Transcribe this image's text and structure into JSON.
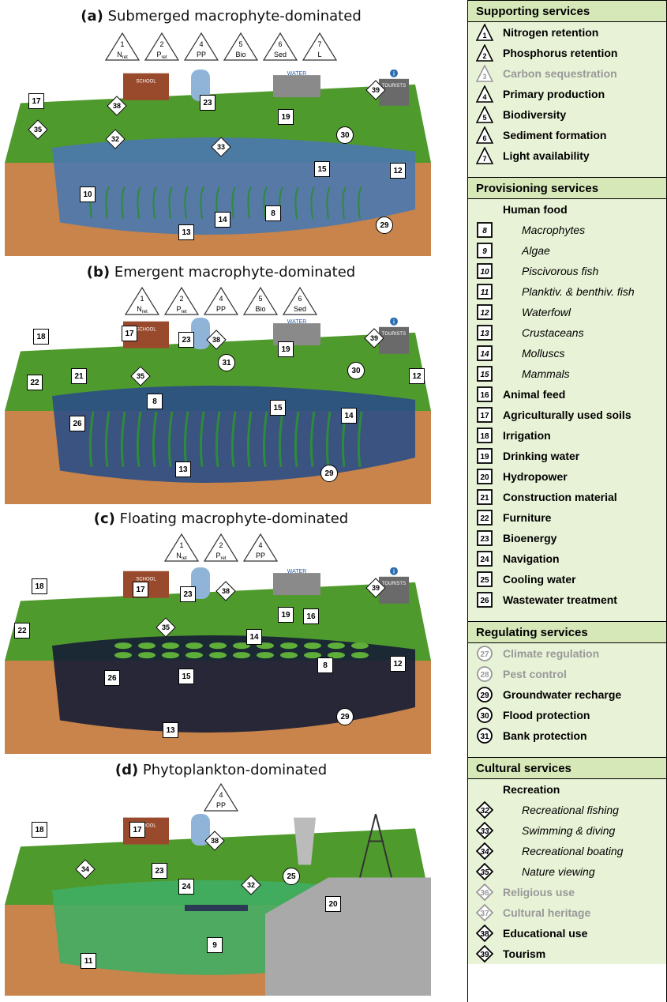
{
  "panels": [
    {
      "letter": "(a)",
      "title": "Submerged macrophyte-dominated",
      "triangles": [
        {
          "n": "1",
          "t": "N",
          "sub": "ret"
        },
        {
          "n": "2",
          "t": "P",
          "sub": "ret"
        },
        {
          "n": "4",
          "t": "PP",
          "sub": ""
        },
        {
          "n": "5",
          "t": "Bio",
          "sub": ""
        },
        {
          "n": "6",
          "t": "Sed",
          "sub": ""
        },
        {
          "n": "7",
          "t": "L",
          "sub": ""
        }
      ]
    },
    {
      "letter": "(b)",
      "title": "Emergent macrophyte-dominated",
      "triangles": [
        {
          "n": "1",
          "t": "N",
          "sub": "ret"
        },
        {
          "n": "2",
          "t": "P",
          "sub": "ret"
        },
        {
          "n": "4",
          "t": "PP",
          "sub": ""
        },
        {
          "n": "5",
          "t": "Bio",
          "sub": ""
        },
        {
          "n": "6",
          "t": "Sed",
          "sub": ""
        }
      ]
    },
    {
      "letter": "(c)",
      "title": "Floating macrophyte-dominated",
      "triangles": [
        {
          "n": "1",
          "t": "N",
          "sub": "ret"
        },
        {
          "n": "2",
          "t": "P",
          "sub": "ret"
        },
        {
          "n": "4",
          "t": "PP",
          "sub": ""
        }
      ]
    },
    {
      "letter": "(d)",
      "title": "Phytoplankton-dominated",
      "triangles": [
        {
          "n": "4",
          "t": "PP",
          "sub": ""
        }
      ]
    }
  ],
  "scene_labels": {
    "school": "SCHOOL",
    "drinking_water_line1": "DRINKING",
    "drinking_water_line2": "WATER",
    "tourists": "TOURISTS",
    "info": "i"
  },
  "scene_markers": {
    "a": {
      "squares": [
        "17",
        "23",
        "19",
        "10",
        "8",
        "14",
        "13",
        "15",
        "12"
      ],
      "circles": [
        "30",
        "29"
      ],
      "diamonds": [
        "38",
        "39",
        "32",
        "33",
        "35"
      ]
    },
    "b": {
      "squares": [
        "17",
        "23",
        "19",
        "8",
        "26",
        "15",
        "14",
        "13",
        "12",
        "21",
        "22",
        "18"
      ],
      "circles": [
        "31",
        "30",
        "29"
      ],
      "diamonds": [
        "38",
        "39",
        "35"
      ]
    },
    "c": {
      "squares": [
        "17",
        "23",
        "19",
        "16",
        "14",
        "8",
        "15",
        "26",
        "13",
        "12",
        "22",
        "18"
      ],
      "circles": [
        "29"
      ],
      "diamonds": [
        "38",
        "39",
        "35"
      ]
    },
    "d": {
      "squares": [
        "18",
        "17",
        "23",
        "24",
        "9",
        "11",
        "20"
      ],
      "circles": [
        "25"
      ],
      "diamonds": [
        "38",
        "32",
        "34"
      ]
    }
  },
  "legend": {
    "supporting": {
      "header": "Supporting services",
      "items": [
        {
          "n": "1",
          "label": "Nitrogen retention",
          "muted": false
        },
        {
          "n": "2",
          "label": "Phosphorus retention",
          "muted": false
        },
        {
          "n": "3",
          "label": "Carbon sequestration",
          "muted": true
        },
        {
          "n": "4",
          "label": "Primary production",
          "muted": false
        },
        {
          "n": "5",
          "label": "Biodiversity",
          "muted": false
        },
        {
          "n": "6",
          "label": "Sediment formation",
          "muted": false
        },
        {
          "n": "7",
          "label": "Light availability",
          "muted": false
        }
      ]
    },
    "provisioning": {
      "header": "Provisioning services",
      "subheader": "Human food",
      "items": [
        {
          "n": "8",
          "label": "Macrophytes",
          "sub": true
        },
        {
          "n": "9",
          "label": "Algae",
          "sub": true
        },
        {
          "n": "10",
          "label": "Piscivorous fish",
          "sub": true
        },
        {
          "n": "11",
          "label": "Planktiv. & benthiv. fish",
          "sub": true
        },
        {
          "n": "12",
          "label": "Waterfowl",
          "sub": true
        },
        {
          "n": "13",
          "label": "Crustaceans",
          "sub": true
        },
        {
          "n": "14",
          "label": "Molluscs",
          "sub": true
        },
        {
          "n": "15",
          "label": "Mammals",
          "sub": true
        },
        {
          "n": "16",
          "label": "Animal feed",
          "sub": false
        },
        {
          "n": "17",
          "label": "Agriculturally used soils",
          "sub": false
        },
        {
          "n": "18",
          "label": "Irrigation",
          "sub": false
        },
        {
          "n": "19",
          "label": "Drinking water",
          "sub": false
        },
        {
          "n": "20",
          "label": "Hydropower",
          "sub": false
        },
        {
          "n": "21",
          "label": "Construction material",
          "sub": false
        },
        {
          "n": "22",
          "label": "Furniture",
          "sub": false
        },
        {
          "n": "23",
          "label": "Bioenergy",
          "sub": false
        },
        {
          "n": "24",
          "label": "Navigation",
          "sub": false
        },
        {
          "n": "25",
          "label": "Cooling water",
          "sub": false
        },
        {
          "n": "26",
          "label": "Wastewater treatment",
          "sub": false
        }
      ]
    },
    "regulating": {
      "header": "Regulating services",
      "items": [
        {
          "n": "27",
          "label": "Climate regulation",
          "muted": true
        },
        {
          "n": "28",
          "label": "Pest control",
          "muted": true
        },
        {
          "n": "29",
          "label": "Groundwater recharge",
          "muted": false
        },
        {
          "n": "30",
          "label": "Flood protection",
          "muted": false
        },
        {
          "n": "31",
          "label": "Bank protection",
          "muted": false
        }
      ]
    },
    "cultural": {
      "header": "Cultural services",
      "subheader": "Recreation",
      "items": [
        {
          "n": "32",
          "label": "Recreational fishing",
          "sub": true,
          "muted": false
        },
        {
          "n": "33",
          "label": "Swimming & diving",
          "sub": true,
          "muted": false
        },
        {
          "n": "34",
          "label": "Recreational boating",
          "sub": true,
          "muted": false
        },
        {
          "n": "35",
          "label": "Nature viewing",
          "sub": true,
          "muted": false
        },
        {
          "n": "36",
          "label": "Religious use",
          "sub": false,
          "muted": true
        },
        {
          "n": "37",
          "label": "Cultural heritage",
          "sub": false,
          "muted": true
        },
        {
          "n": "38",
          "label": "Educational use",
          "sub": false,
          "muted": false
        },
        {
          "n": "39",
          "label": "Tourism",
          "sub": false,
          "muted": false
        }
      ]
    }
  },
  "colors": {
    "header_bg": "#d6e8b8",
    "section_bg": "#e8f2d6",
    "muted_text": "#999999",
    "grass": "#4f9a2c",
    "soil": "#c8844a",
    "water_a": "#4a78b0",
    "water_d": "#3fae63"
  }
}
